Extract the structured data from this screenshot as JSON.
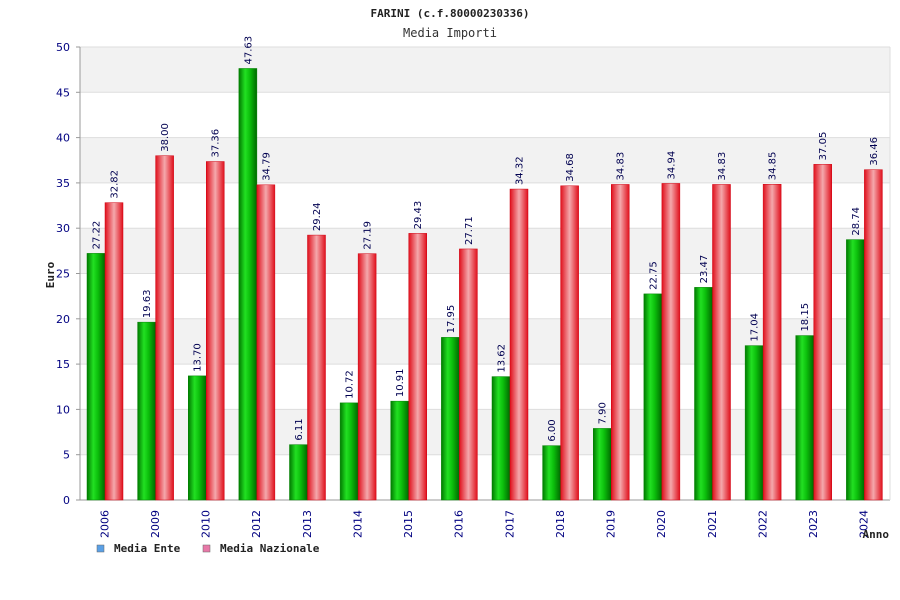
{
  "colors": {
    "ente": "#00b400",
    "nazionale": "#e8202a",
    "legend_ente": "#5aa0e6",
    "legend_nazionale": "#e878a8",
    "band": "#f2f2f2",
    "grid": "#dddddd",
    "tick_text": "#000080"
  },
  "chart_data": {
    "type": "bar",
    "title": "FARINI (c.f.80000230336)",
    "subtitle": "Media Importi",
    "xlabel": "Anno",
    "ylabel": "Euro",
    "ylim": [
      0,
      50
    ],
    "yticks": [
      0,
      5,
      10,
      15,
      20,
      25,
      30,
      35,
      40,
      45,
      50
    ],
    "grid": true,
    "legend_position": "bottom-left",
    "categories": [
      "2006",
      "2009",
      "2010",
      "2012",
      "2013",
      "2014",
      "2015",
      "2016",
      "2017",
      "2018",
      "2019",
      "2020",
      "2021",
      "2022",
      "2023",
      "2024"
    ],
    "series": [
      {
        "name": "Media Ente",
        "values": [
          27.22,
          19.63,
          13.7,
          47.63,
          6.11,
          10.72,
          10.91,
          17.95,
          13.62,
          6.0,
          7.9,
          22.75,
          23.47,
          17.04,
          18.15,
          28.74
        ],
        "labels": [
          "27.22",
          "19.63",
          "13.70",
          "47.63",
          "6.11",
          "10.72",
          "10.91",
          "17.95",
          "13.62",
          "6.00",
          "7.90",
          "22.75",
          "23.47",
          "17.04",
          "18.15",
          "28.74"
        ]
      },
      {
        "name": "Media Nazionale",
        "values": [
          32.82,
          38.0,
          37.36,
          34.79,
          29.24,
          27.19,
          29.43,
          27.71,
          34.32,
          34.68,
          34.83,
          34.94,
          34.83,
          34.85,
          37.05,
          36.46
        ],
        "labels": [
          "32.82",
          "38.00",
          "37.36",
          "34.79",
          "29.24",
          "27.19",
          "29.43",
          "27.71",
          "34.32",
          "34.68",
          "34.83",
          "34.94",
          "34.83",
          "34.85",
          "37.05",
          "36.46"
        ]
      }
    ]
  }
}
